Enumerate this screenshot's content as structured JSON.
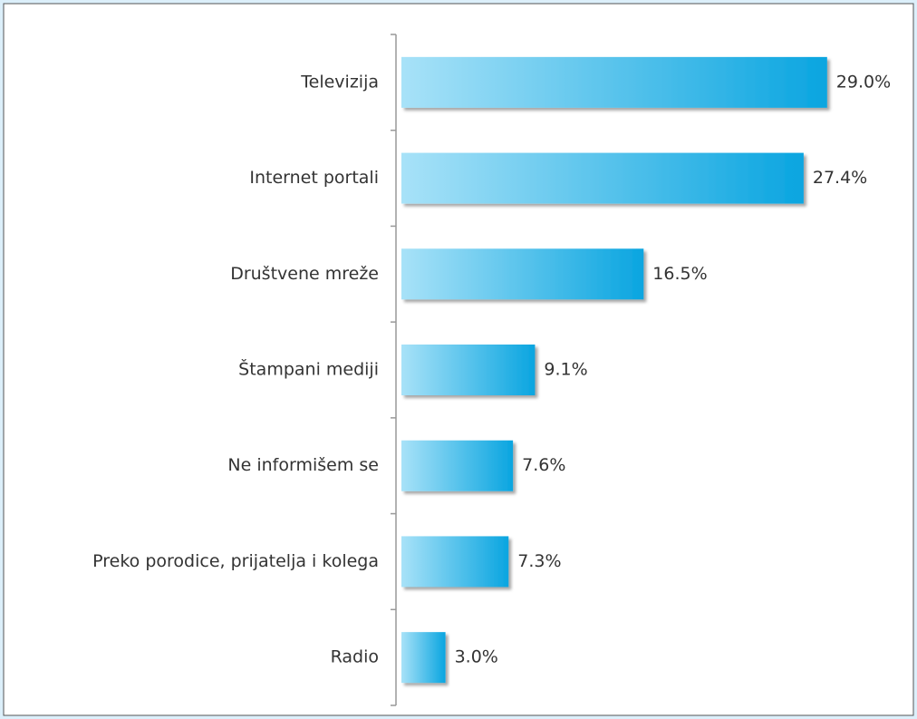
{
  "chart_data": {
    "type": "bar",
    "orientation": "horizontal",
    "categories": [
      "Televizija",
      "Internet portali",
      "Društvene mreže",
      "Štampani mediji",
      "Ne informišem se",
      "Preko porodice, prijatelja i kolega",
      "Radio"
    ],
    "values": [
      29.0,
      27.4,
      16.5,
      9.1,
      7.6,
      7.3,
      3.0
    ],
    "value_labels": [
      "29.0%",
      "27.4%",
      "16.5%",
      "9.1%",
      "7.6%",
      "7.3%",
      "3.0%"
    ],
    "color": "#0aa5e0"
  }
}
